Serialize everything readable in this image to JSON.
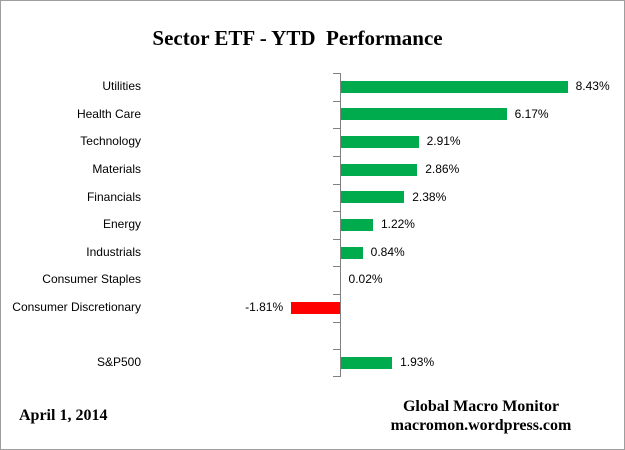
{
  "title": "Sector ETF - YTD  Performance",
  "footer": {
    "date": "April 1, 2014",
    "source_line1": "Global Macro Monitor",
    "source_line2": "macromon.wordpress.com"
  },
  "colors": {
    "positive_bar": "#00AB4E",
    "negative_bar": "#FF0000",
    "axis": "#808080",
    "border": "#9E9E9E",
    "text": "#000000"
  },
  "chart_data": {
    "type": "bar",
    "orientation": "horizontal",
    "title": "Sector ETF - YTD  Performance",
    "xlabel": "",
    "ylabel": "",
    "grid": false,
    "legend": false,
    "categories": [
      "Utilities",
      "Health Care",
      "Technology",
      "Materials",
      "Financials",
      "Energy",
      "Industrials",
      "Consumer Staples",
      "Consumer Discretionary",
      "",
      "S&P500"
    ],
    "values": [
      8.43,
      6.17,
      2.91,
      2.86,
      2.38,
      1.22,
      0.84,
      0.02,
      -1.81,
      null,
      1.93
    ],
    "value_labels": [
      "8.43%",
      "6.17%",
      "2.91%",
      "2.86%",
      "2.38%",
      "1.22%",
      "0.84%",
      "0.02%",
      "-1.81%",
      "",
      "1.93%"
    ],
    "positive_color": "#00AB4E",
    "negative_color": "#FF0000",
    "axis_color": "#808080"
  }
}
